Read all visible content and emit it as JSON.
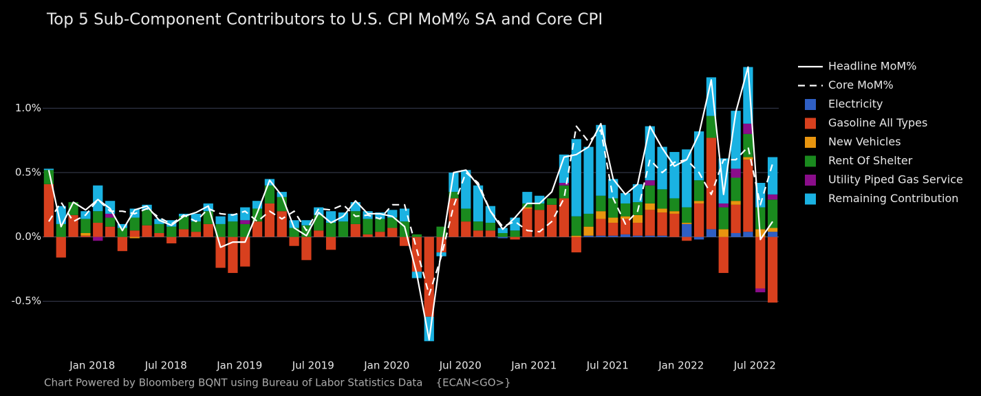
{
  "chart_data": {
    "type": "bar",
    "title": "Top 5 Sub-Component Contributors to U.S. CPI MoM% SA and Core CPI",
    "footer": "Chart Powered by Bloomberg BQNT using Bureau of Labor Statistics Data    {ECAN<GO>}",
    "categories": [
      null,
      null,
      null,
      null,
      "Jan 2018",
      null,
      null,
      null,
      null,
      null,
      "Jul 2018",
      null,
      null,
      null,
      null,
      null,
      "Jan 2019",
      null,
      null,
      null,
      null,
      null,
      "Jul 2019",
      null,
      null,
      null,
      null,
      null,
      "Jan 2020",
      null,
      null,
      null,
      null,
      null,
      "Jul 2020",
      null,
      null,
      null,
      null,
      null,
      "Jan 2021",
      null,
      null,
      null,
      null,
      null,
      "Jul 2021",
      null,
      null,
      null,
      null,
      null,
      "Jan 2022",
      null,
      null,
      null,
      null,
      null,
      "Jul 2022",
      null
    ],
    "ylim": [
      -0.91,
      1.36
    ],
    "yticks": [
      {
        "value": -0.5,
        "label": "-0.5%"
      },
      {
        "value": 0,
        "label": "0.0%"
      },
      {
        "value": 0.5,
        "label": "0.5%"
      },
      {
        "value": 1,
        "label": "1.0%"
      }
    ],
    "grid": true,
    "stacked": true,
    "legend": "right",
    "series": [
      {
        "name": "Electricity",
        "color": "#2f5fc4",
        "values": [
          0,
          0,
          0,
          0,
          0,
          0,
          0,
          0,
          0,
          0,
          0,
          0,
          0,
          0,
          0,
          0,
          0,
          0,
          0,
          0,
          0,
          0,
          0,
          0,
          0,
          0,
          0,
          0,
          0,
          0,
          0,
          0,
          0,
          0,
          0,
          0,
          0,
          -0.01,
          0,
          0,
          0,
          0,
          0,
          0,
          0.01,
          0.01,
          0.01,
          0.02,
          0.01,
          0.01,
          0.01,
          0,
          0.1,
          -0.02,
          0.06,
          0,
          0.03,
          0.04,
          0,
          0.04
        ]
      },
      {
        "name": "Gasoline All Types",
        "color": "#d8401e",
        "values": [
          0.41,
          -0.16,
          0.17,
          0.01,
          0.11,
          0.08,
          -0.11,
          0.05,
          0.09,
          0.03,
          -0.05,
          0.06,
          0.04,
          0.1,
          -0.24,
          -0.28,
          -0.23,
          0.12,
          0.26,
          0.2,
          -0.07,
          -0.18,
          0.05,
          -0.1,
          0,
          0.1,
          0.02,
          0.04,
          0.07,
          -0.07,
          -0.27,
          -0.62,
          -0.12,
          0.3,
          0.12,
          0.05,
          0.05,
          0,
          -0.02,
          0.22,
          0.21,
          0.25,
          0.3,
          -0.12,
          0,
          0.13,
          0.1,
          0.12,
          0.1,
          0.2,
          0.18,
          0.18,
          -0.03,
          0.26,
          0.71,
          -0.28,
          0.22,
          0.56,
          -0.4,
          -0.51
        ]
      },
      {
        "name": "New Vehicles",
        "color": "#e8950f",
        "values": [
          0,
          0,
          0,
          0.02,
          0,
          0,
          0,
          -0.01,
          0,
          0,
          0,
          0,
          0,
          0,
          0,
          0,
          0,
          0,
          0,
          0,
          0,
          0,
          0,
          0,
          0,
          0,
          0,
          0,
          0,
          0,
          0,
          0,
          0,
          0,
          0,
          0,
          0,
          0,
          0,
          0.01,
          0,
          0,
          0,
          0.01,
          0.07,
          0.06,
          0.04,
          0.02,
          0.06,
          0.05,
          0.03,
          0.02,
          0.01,
          0.02,
          0,
          0.06,
          0.03,
          0.02,
          0.06,
          0.03
        ]
      },
      {
        "name": "Rent Of Shelter",
        "color": "#1a8a1e",
        "values": [
          0.11,
          0.1,
          0.1,
          0.11,
          0.09,
          0.07,
          0.07,
          0.1,
          0.12,
          0.07,
          0.08,
          0.1,
          0.08,
          0.1,
          0.1,
          0.12,
          0.1,
          0.1,
          0.14,
          0.11,
          0.07,
          0.09,
          0.12,
          0.11,
          0.12,
          0.1,
          0.12,
          0.1,
          0.08,
          0.12,
          0.02,
          0,
          0.08,
          0.05,
          0.1,
          0.07,
          0.06,
          0.03,
          0.05,
          0.03,
          0.05,
          0.05,
          0.1,
          0.15,
          0.1,
          0.12,
          0.15,
          0.1,
          0.1,
          0.14,
          0.15,
          0.1,
          0.12,
          0.16,
          0.17,
          0.17,
          0.18,
          0.18,
          0.17,
          0.22
        ]
      },
      {
        "name": "Utility Piped Gas Service",
        "color": "#8a0d8a",
        "values": [
          0,
          0,
          0,
          0,
          -0.03,
          0.03,
          0,
          0,
          0,
          0,
          0,
          0,
          0,
          0,
          0,
          0,
          0.03,
          0,
          0,
          0,
          0,
          0,
          0,
          0,
          0,
          0,
          0,
          0,
          0,
          0,
          0,
          0,
          0,
          0,
          0,
          0,
          0,
          0,
          0,
          0,
          0,
          0,
          0.02,
          0,
          0,
          0,
          0,
          0,
          0,
          0.04,
          0,
          0,
          0,
          0,
          0,
          0.03,
          0.07,
          0.08,
          -0.03,
          0.04
        ]
      },
      {
        "name": "Remaining Contribution",
        "color": "#1ab2e2",
        "values": [
          0.01,
          0.14,
          0,
          0.06,
          0.2,
          0.1,
          0.03,
          0.07,
          0.04,
          0.04,
          0.05,
          0.02,
          0.06,
          0.06,
          0.06,
          0.06,
          0.1,
          0.06,
          0.05,
          0.04,
          0.06,
          0.04,
          0.06,
          0.09,
          0.07,
          0.07,
          0.06,
          0.05,
          0.06,
          0.1,
          -0.05,
          -0.19,
          -0.03,
          0.15,
          0.3,
          0.28,
          0.13,
          0.04,
          0.1,
          0.09,
          0.06,
          0,
          0.22,
          0.6,
          0.52,
          0.55,
          0.15,
          0.08,
          0.14,
          0.42,
          0.33,
          0.36,
          0.45,
          0.38,
          0.3,
          0.35,
          0.45,
          0.44,
          0.19,
          0.29
        ]
      }
    ],
    "lines": [
      {
        "name": "Headline MoM%",
        "color": "#ffffff",
        "dashed": false,
        "values": [
          0.52,
          0.08,
          0.27,
          0.21,
          0.29,
          0.22,
          0.05,
          0.21,
          0.24,
          0.13,
          0.09,
          0.16,
          0.19,
          0.24,
          -0.08,
          -0.04,
          -0.04,
          0.19,
          0.44,
          0.32,
          0.07,
          0.01,
          0.19,
          0.11,
          0.16,
          0.28,
          0.18,
          0.18,
          0.16,
          0.08,
          -0.29,
          -0.8,
          -0.1,
          0.5,
          0.52,
          0.4,
          0.2,
          0.06,
          0.15,
          0.26,
          0.26,
          0.35,
          0.62,
          0.64,
          0.7,
          0.88,
          0.45,
          0.33,
          0.41,
          0.86,
          0.69,
          0.55,
          0.6,
          0.8,
          1.22,
          0.33,
          0.97,
          1.32,
          -0.02,
          0.12
        ]
      },
      {
        "name": "Core MoM%",
        "color": "#ffffff",
        "dashed": true,
        "values": [
          0.12,
          0.27,
          0.12,
          0.17,
          0.29,
          0.2,
          0.2,
          0.18,
          0.22,
          0.15,
          0.1,
          0.17,
          0.12,
          0.22,
          0.18,
          0.17,
          0.2,
          0.12,
          0.2,
          0.14,
          0.2,
          0.05,
          0.22,
          0.21,
          0.25,
          0.16,
          0.17,
          0.14,
          0.25,
          0.25,
          -0.1,
          -0.45,
          -0.15,
          0.24,
          0.5,
          0.42,
          0.2,
          0.08,
          0.12,
          0.05,
          0.04,
          0.12,
          0.3,
          0.86,
          0.74,
          0.83,
          0.3,
          0.1,
          0.2,
          0.6,
          0.5,
          0.58,
          0.6,
          0.5,
          0.33,
          0.6,
          0.6,
          0.7,
          0.25,
          0.57
        ]
      }
    ]
  }
}
